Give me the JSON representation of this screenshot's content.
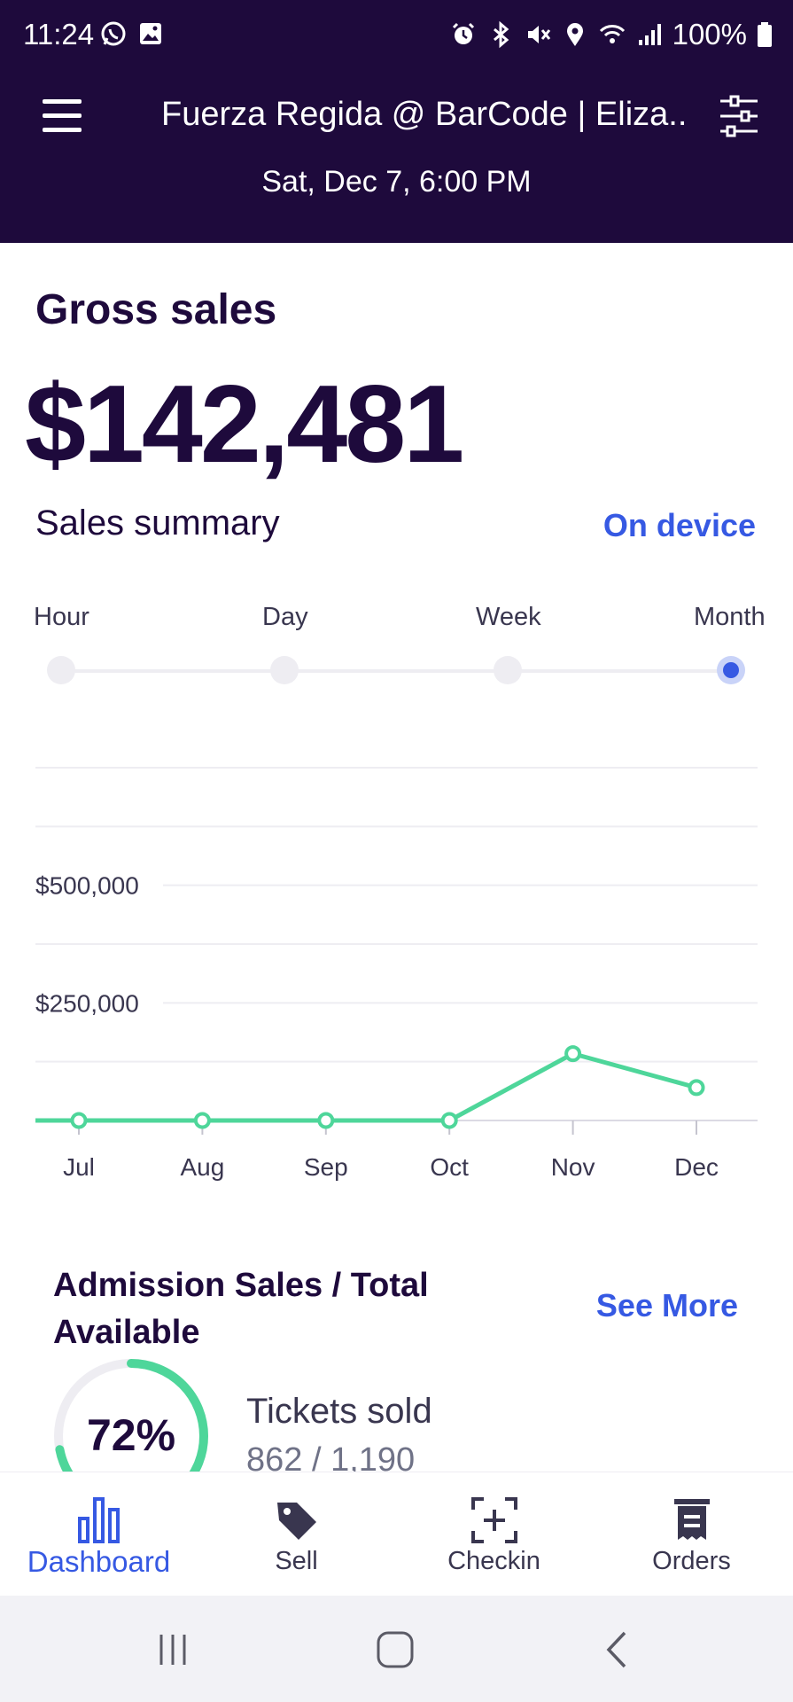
{
  "status_bar": {
    "time": "11:24",
    "battery": "100%",
    "left_icons": [
      "whatsapp-icon",
      "gallery-icon"
    ],
    "right_icons": [
      "alarm-icon",
      "bluetooth-icon",
      "mute-icon",
      "location-icon",
      "wifi-icon",
      "signal-icon",
      "battery-icon"
    ]
  },
  "header": {
    "menu_icon": "hamburger-menu-icon",
    "title": "Fuerza Regida @ BarCode | Eliza...",
    "date": "Sat, Dec 7, 6:00 PM",
    "filter_icon": "sliders-icon"
  },
  "gross_sales": {
    "label": "Gross sales",
    "value": "$142,481"
  },
  "sales_summary": {
    "label": "Sales summary",
    "source_link": "On device",
    "periods": [
      "Hour",
      "Day",
      "Week",
      "Month"
    ],
    "selected_period": "Month"
  },
  "chart_data": {
    "type": "line",
    "categories": [
      "Jul",
      "Aug",
      "Sep",
      "Oct",
      "Nov",
      "Dec"
    ],
    "values": [
      0,
      0,
      0,
      0,
      142000,
      70000
    ],
    "ytick_labels": [
      "$500,000",
      "$250,000"
    ],
    "ytick_values": [
      500000,
      250000
    ],
    "ylim": [
      0,
      750000
    ],
    "grid": true,
    "color": "#4ed69a"
  },
  "admission": {
    "title": "Admission Sales / Total Available",
    "see_more": "See More",
    "percent_label": "72%",
    "percent": 72,
    "tickets_label": "Tickets sold",
    "tickets_value": "862 / 1,190"
  },
  "bottom_nav": {
    "items": [
      {
        "label": "Dashboard",
        "icon": "bar-chart-icon",
        "active": true
      },
      {
        "label": "Sell",
        "icon": "tag-icon",
        "active": false
      },
      {
        "label": "Checkin",
        "icon": "scan-add-icon",
        "active": false
      },
      {
        "label": "Orders",
        "icon": "receipt-icon",
        "active": false
      }
    ]
  },
  "system_nav": {
    "icons": [
      "recents-icon",
      "home-icon",
      "back-icon"
    ]
  },
  "colors": {
    "header_bg": "#1e0a3c",
    "accent": "#3659e3",
    "chart_line": "#4ed69a"
  }
}
